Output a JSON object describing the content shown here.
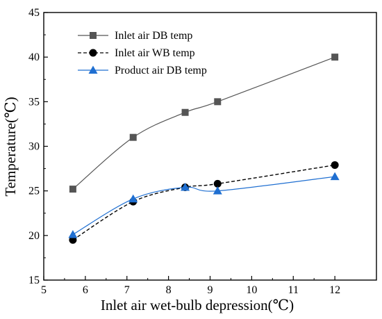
{
  "chart_data": {
    "type": "line",
    "xlabel": "Inlet air wet-bulb depression(℃)",
    "ylabel": "Temperature(℃)",
    "xlim": [
      5,
      13
    ],
    "ylim": [
      15,
      45
    ],
    "xticks": [
      5,
      6,
      7,
      8,
      9,
      10,
      11,
      12
    ],
    "yticks": [
      15,
      20,
      25,
      30,
      35,
      40,
      45
    ],
    "grid": false,
    "legend_position": "top-left",
    "series": [
      {
        "name": "Inlet air DB temp",
        "x": [
          5.7,
          7.15,
          8.4,
          9.18,
          12.0
        ],
        "values": [
          25.2,
          31.0,
          33.8,
          35.0,
          40.0
        ],
        "color": "#555555",
        "marker": "square",
        "line": "solid-smooth"
      },
      {
        "name": "Inlet air WB temp",
        "x": [
          5.7,
          7.15,
          8.4,
          9.18,
          12.0
        ],
        "values": [
          19.5,
          23.8,
          25.4,
          25.8,
          27.9
        ],
        "color": "#000000",
        "marker": "circle",
        "line": "dashed"
      },
      {
        "name": "Product air DB temp",
        "x": [
          5.7,
          7.15,
          8.4,
          9.18,
          12.0
        ],
        "values": [
          20.1,
          24.1,
          25.4,
          25.0,
          26.6
        ],
        "color": "#1f6fd1",
        "marker": "triangle",
        "line": "solid-smooth"
      }
    ]
  }
}
